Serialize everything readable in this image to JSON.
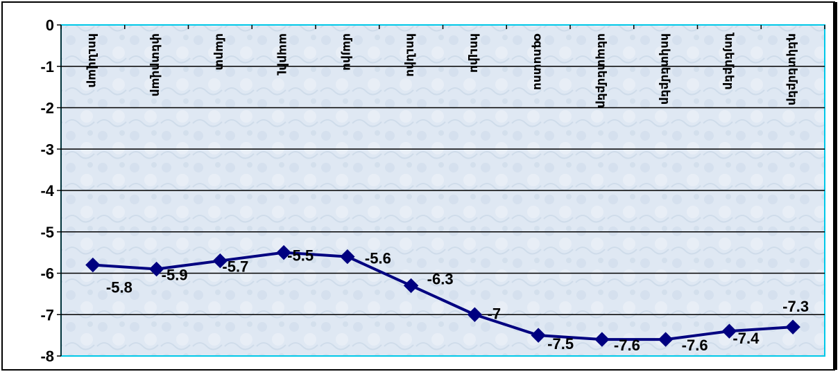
{
  "chart_data": {
    "type": "line",
    "categories": [
      "հունվար",
      "փետրվար",
      "մարտ",
      "ապրիլ",
      "մայիս",
      "հունիս",
      "հուլիս",
      "օգոստոս",
      "սեպտեմբեր",
      "հոկտեմբեր",
      "նոյեմբեր",
      "դեկտեմբեր"
    ],
    "series": [
      {
        "values": [
          -5.8,
          -5.9,
          -5.7,
          -5.5,
          -5.6,
          -6.3,
          -7,
          -7.5,
          -7.6,
          -7.6,
          -7.4,
          -7.3
        ],
        "data_labels": [
          "-5.8",
          "-5.9",
          "-5.7",
          "-5.5",
          "-5.6",
          "-6.3",
          "-7",
          "-7.5",
          "-7.6",
          "-7.6",
          "-7.4",
          "-7.3"
        ]
      }
    ],
    "y_ticks": [
      "0",
      "-1",
      "-2",
      "-3",
      "-4",
      "-5",
      "-6",
      "-7",
      "-8"
    ],
    "ylim": [
      -8,
      0
    ],
    "grid": true,
    "legend": "none",
    "colors": {
      "line": "#000080",
      "marker": "#000080",
      "gridline": "#000000",
      "plot_background": "#dce6f2",
      "plot_border": "#00c8e8",
      "outer_border": "#000000"
    }
  }
}
